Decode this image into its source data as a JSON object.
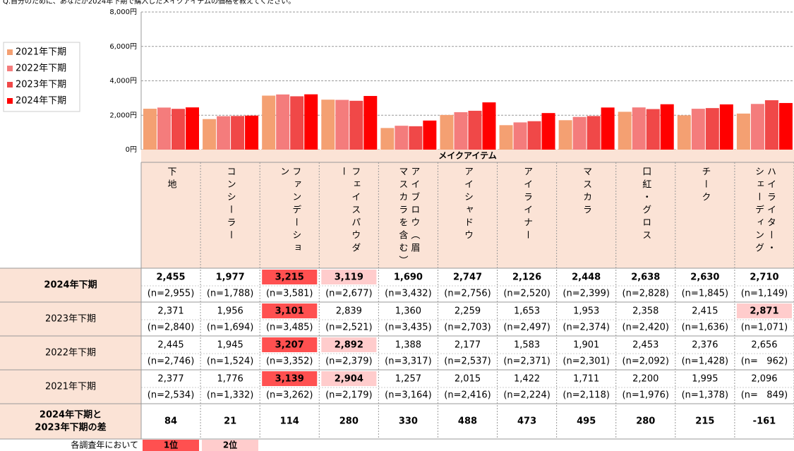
{
  "chart_data": {
    "type": "bar",
    "title": "Q.自分のために、あなたが2024年下期で購入したメイクアイテムの価格を教えてください。",
    "x_label": "メイクアイテム",
    "categories": [
      "下地",
      "コンシーラー",
      "ファンデーション",
      "フェイスパウダー",
      "アイブロウ（眉マスカラを含む）",
      "アイシャドウ",
      "アイライナー",
      "マスカラ",
      "口紅・グロス",
      "チーク",
      "ハイライター・シェーディング"
    ],
    "ylim": [
      0,
      8000
    ],
    "yticks": [
      {
        "value": 0,
        "label": "0円"
      },
      {
        "value": 2000,
        "label": "2,000円"
      },
      {
        "value": 4000,
        "label": "4,000円"
      },
      {
        "value": 6000,
        "label": "6,000円"
      },
      {
        "value": 8000,
        "label": "8,000円"
      }
    ],
    "grid": true,
    "legend": "left",
    "series": [
      {
        "name": "2021年下期",
        "color": "#f4a072",
        "values": [
          2377,
          1776,
          3139,
          2904,
          1257,
          2015,
          1422,
          1711,
          2200,
          1995,
          2096
        ],
        "value_labels": [
          "2,377",
          "1,776",
          "3,139",
          "2,904",
          "1,257",
          "2,015",
          "1,422",
          "1,711",
          "2,200",
          "1,995",
          "2,096"
        ],
        "sample_sizes": [
          "(n=2,534)",
          "(n=1,332)",
          "(n=3,262)",
          "(n=2,179)",
          "(n=3,164)",
          "(n=2,416)",
          "(n=2,224)",
          "(n=2,118)",
          "(n=1,976)",
          "(n=1,378)",
          "(n=   849)"
        ],
        "highlight": {
          "first": 2,
          "second": 3
        }
      },
      {
        "name": "2022年下期",
        "color": "#f47c7c",
        "values": [
          2445,
          1945,
          3207,
          2892,
          1388,
          2177,
          1583,
          1901,
          2453,
          2376,
          2656
        ],
        "value_labels": [
          "2,445",
          "1,945",
          "3,207",
          "2,892",
          "1,388",
          "2,177",
          "1,583",
          "1,901",
          "2,453",
          "2,376",
          "2,656"
        ],
        "sample_sizes": [
          "(n=2,746)",
          "(n=1,524)",
          "(n=3,352)",
          "(n=2,379)",
          "(n=3,317)",
          "(n=2,537)",
          "(n=2,371)",
          "(n=2,301)",
          "(n=2,092)",
          "(n=1,428)",
          "(n=   962)"
        ],
        "highlight": {
          "first": 2,
          "second": 3
        }
      },
      {
        "name": "2023年下期",
        "color": "#f04848",
        "values": [
          2371,
          1956,
          3101,
          2839,
          1360,
          2259,
          1653,
          1953,
          2358,
          2415,
          2871
        ],
        "value_labels": [
          "2,371",
          "1,956",
          "3,101",
          "2,839",
          "1,360",
          "2,259",
          "1,653",
          "1,953",
          "2,358",
          "2,415",
          "2,871"
        ],
        "sample_sizes": [
          "(n=2,840)",
          "(n=1,694)",
          "(n=3,485)",
          "(n=2,521)",
          "(n=3,435)",
          "(n=2,703)",
          "(n=2,497)",
          "(n=2,374)",
          "(n=2,420)",
          "(n=1,636)",
          "(n=1,071)"
        ],
        "highlight": {
          "first": 2,
          "second": 10
        }
      },
      {
        "name": "2024年下期",
        "color": "#ff0000",
        "values": [
          2455,
          1977,
          3215,
          3119,
          1690,
          2747,
          2126,
          2448,
          2638,
          2630,
          2710
        ],
        "value_labels": [
          "2,455",
          "1,977",
          "3,215",
          "3,119",
          "1,690",
          "2,747",
          "2,126",
          "2,448",
          "2,638",
          "2,630",
          "2,710"
        ],
        "sample_sizes": [
          "(n=2,955)",
          "(n=1,788)",
          "(n=3,581)",
          "(n=2,677)",
          "(n=3,432)",
          "(n=2,756)",
          "(n=2,520)",
          "(n=2,399)",
          "(n=2,828)",
          "(n=1,845)",
          "(n=1,149)"
        ],
        "highlight": {
          "first": 2,
          "second": 3
        }
      }
    ],
    "difference": {
      "label": [
        "2024年下期と",
        "2023年下期の差"
      ],
      "values": [
        84,
        21,
        114,
        280,
        330,
        488,
        473,
        495,
        280,
        215,
        -161
      ]
    },
    "footnote": "各調査年において",
    "ranks": [
      {
        "label": "1位",
        "color": "#ff5050"
      },
      {
        "label": "2位",
        "color": "#ffcccc"
      }
    ]
  }
}
